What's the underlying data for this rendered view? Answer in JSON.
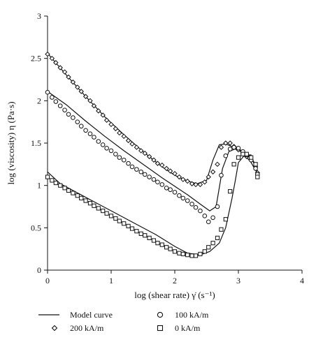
{
  "chart_data": {
    "type": "scatter",
    "xlabel": "log (shear rate) γ̇ (s⁻¹)",
    "ylabel": "log (viscosity) η (Pa·s)",
    "xlim": [
      0,
      4
    ],
    "ylim": [
      0,
      3
    ],
    "xticks": [
      "0",
      "1",
      "2",
      "3",
      "4"
    ],
    "yticks": [
      "0",
      "0.5",
      "1",
      "1.5",
      "2",
      "2.5",
      "3"
    ],
    "grid": false,
    "legend_position": "bottom",
    "legend": {
      "model_curve": "Model curve",
      "field_100": "100 kA/m",
      "field_200": "200 kA/m",
      "field_0": "0 kA/m"
    },
    "model_curves": [
      {
        "name": "200 kA/m",
        "x": [
          0,
          0.3,
          0.6,
          0.9,
          1.2,
          1.5,
          1.8,
          2.0,
          2.2,
          2.35,
          2.5,
          2.6,
          2.7,
          2.8,
          2.9,
          3.0,
          3.1,
          3.2,
          3.3
        ],
        "y": [
          2.56,
          2.3,
          2.05,
          1.81,
          1.6,
          1.4,
          1.22,
          1.12,
          1.05,
          1.02,
          1.06,
          1.3,
          1.48,
          1.49,
          1.46,
          1.42,
          1.36,
          1.27,
          1.14
        ]
      },
      {
        "name": "100 kA/m",
        "x": [
          0,
          0.3,
          0.6,
          0.9,
          1.2,
          1.5,
          1.8,
          2.0,
          2.2,
          2.4,
          2.55,
          2.65,
          2.75,
          2.85,
          2.95,
          3.05,
          3.15,
          3.25,
          3.3
        ],
        "y": [
          2.11,
          1.95,
          1.76,
          1.58,
          1.41,
          1.25,
          1.09,
          0.99,
          0.89,
          0.78,
          0.7,
          0.75,
          1.2,
          1.4,
          1.43,
          1.41,
          1.37,
          1.27,
          1.17
        ]
      },
      {
        "name": "0 kA/m",
        "x": [
          0,
          0.2,
          0.5,
          0.8,
          1.1,
          1.4,
          1.7,
          2.0,
          2.2,
          2.4,
          2.55,
          2.7,
          2.8,
          2.9,
          2.95,
          3.0,
          3.1,
          3.2,
          3.3
        ],
        "y": [
          1.16,
          1.02,
          0.9,
          0.78,
          0.66,
          0.54,
          0.42,
          0.28,
          0.2,
          0.18,
          0.22,
          0.32,
          0.5,
          0.85,
          1.05,
          1.27,
          1.36,
          1.36,
          1.12
        ]
      }
    ],
    "series": [
      {
        "name": "200 kA/m",
        "marker": "diamond",
        "x": [
          0.0,
          0.07,
          0.13,
          0.2,
          0.27,
          0.33,
          0.4,
          0.47,
          0.53,
          0.6,
          0.67,
          0.73,
          0.8,
          0.87,
          0.93,
          1.0,
          1.07,
          1.13,
          1.2,
          1.27,
          1.33,
          1.4,
          1.47,
          1.53,
          1.6,
          1.67,
          1.73,
          1.8,
          1.87,
          1.93,
          2.0,
          2.07,
          2.13,
          2.2,
          2.27,
          2.33,
          2.4,
          2.47,
          2.53,
          2.6,
          2.67,
          2.73,
          2.8,
          2.87,
          2.93,
          3.0,
          3.07,
          3.13,
          3.2,
          3.27,
          3.3
        ],
        "y": [
          2.55,
          2.5,
          2.45,
          2.39,
          2.34,
          2.28,
          2.22,
          2.16,
          2.11,
          2.05,
          2.0,
          1.94,
          1.88,
          1.83,
          1.77,
          1.72,
          1.67,
          1.62,
          1.58,
          1.53,
          1.49,
          1.45,
          1.41,
          1.38,
          1.34,
          1.3,
          1.26,
          1.24,
          1.2,
          1.17,
          1.14,
          1.1,
          1.07,
          1.05,
          1.02,
          1.01,
          1.01,
          1.04,
          1.1,
          1.16,
          1.25,
          1.45,
          1.5,
          1.5,
          1.46,
          1.42,
          1.38,
          1.34,
          1.3,
          1.22,
          1.15
        ]
      },
      {
        "name": "100 kA/m",
        "marker": "circle",
        "x": [
          0.0,
          0.07,
          0.13,
          0.2,
          0.27,
          0.33,
          0.4,
          0.47,
          0.53,
          0.6,
          0.67,
          0.73,
          0.8,
          0.87,
          0.93,
          1.0,
          1.07,
          1.13,
          1.2,
          1.27,
          1.33,
          1.4,
          1.47,
          1.53,
          1.6,
          1.67,
          1.73,
          1.8,
          1.87,
          1.93,
          2.0,
          2.07,
          2.13,
          2.2,
          2.27,
          2.33,
          2.4,
          2.47,
          2.53,
          2.6,
          2.67,
          2.73,
          2.8,
          2.87,
          2.93,
          3.0,
          3.07,
          3.13,
          3.2,
          3.27,
          3.3
        ],
        "y": [
          2.1,
          2.04,
          1.99,
          1.94,
          1.89,
          1.84,
          1.8,
          1.75,
          1.7,
          1.65,
          1.61,
          1.57,
          1.52,
          1.48,
          1.44,
          1.41,
          1.37,
          1.33,
          1.3,
          1.26,
          1.22,
          1.19,
          1.16,
          1.13,
          1.1,
          1.07,
          1.04,
          1.01,
          0.97,
          0.95,
          0.92,
          0.88,
          0.85,
          0.82,
          0.78,
          0.74,
          0.7,
          0.64,
          0.57,
          0.62,
          0.75,
          1.12,
          1.35,
          1.43,
          1.45,
          1.44,
          1.4,
          1.36,
          1.3,
          1.2,
          1.13
        ]
      },
      {
        "name": "0 kA/m",
        "marker": "square",
        "x": [
          0.0,
          0.07,
          0.13,
          0.2,
          0.27,
          0.33,
          0.4,
          0.47,
          0.53,
          0.6,
          0.67,
          0.73,
          0.8,
          0.87,
          0.93,
          1.0,
          1.07,
          1.13,
          1.2,
          1.27,
          1.33,
          1.4,
          1.47,
          1.53,
          1.6,
          1.67,
          1.73,
          1.8,
          1.87,
          1.93,
          2.0,
          2.07,
          2.13,
          2.2,
          2.27,
          2.33,
          2.4,
          2.47,
          2.53,
          2.6,
          2.67,
          2.73,
          2.8,
          2.87,
          2.93,
          3.0,
          3.07,
          3.13,
          3.2,
          3.27,
          3.3
        ],
        "y": [
          1.1,
          1.06,
          1.03,
          1.0,
          0.97,
          0.94,
          0.91,
          0.88,
          0.85,
          0.82,
          0.79,
          0.76,
          0.73,
          0.7,
          0.67,
          0.64,
          0.61,
          0.58,
          0.55,
          0.52,
          0.49,
          0.46,
          0.43,
          0.41,
          0.38,
          0.35,
          0.32,
          0.3,
          0.27,
          0.25,
          0.22,
          0.2,
          0.19,
          0.18,
          0.17,
          0.17,
          0.19,
          0.22,
          0.27,
          0.32,
          0.38,
          0.48,
          0.6,
          0.93,
          1.25,
          1.33,
          1.37,
          1.37,
          1.33,
          1.25,
          1.1
        ]
      }
    ]
  }
}
